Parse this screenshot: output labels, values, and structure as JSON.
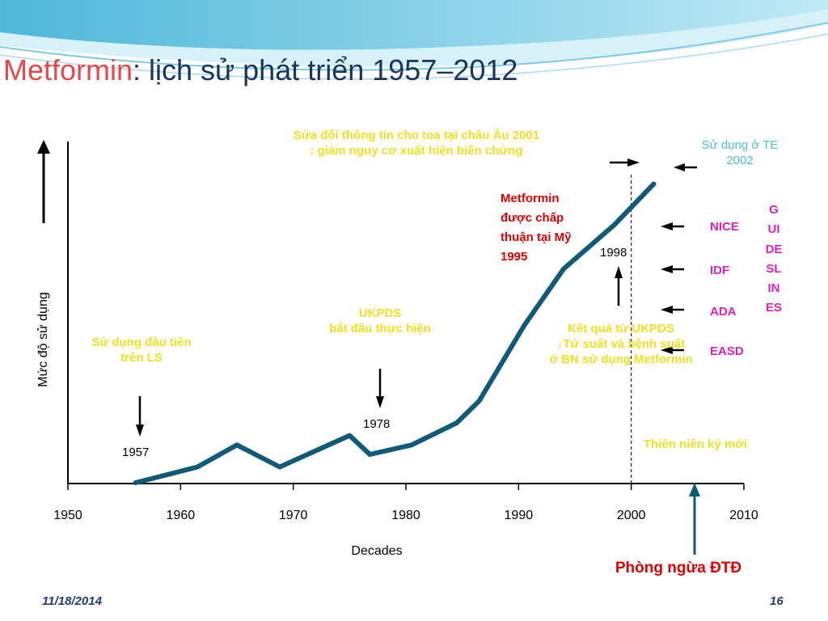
{
  "slide": {
    "title_accent": "Metformin",
    "title_rest": ": lịch sử phát triển 1957–2012",
    "footer_date": "11/18/2014",
    "page_number": "16",
    "colors": {
      "title": "#17365d",
      "accent": "#e8474c",
      "line": "#0f5a78",
      "wave": "#4fb7d9"
    }
  },
  "chart_data": {
    "type": "line",
    "xlabel": "Decades",
    "ylabel": "Mức độ sử dụng",
    "xlim": [
      1950,
      2010
    ],
    "x_ticks": [
      "1950",
      "1960",
      "1970",
      "1980",
      "1990",
      "2000",
      "2010"
    ],
    "y_ticks_visible": false,
    "series": [
      {
        "x": [
          1956,
          1961.5,
          1965,
          1968.8,
          1975,
          1976.8,
          1980.5,
          1984.5,
          1986.5,
          1990.5,
          1994,
          1998.5,
          2002
        ],
        "y": [
          0,
          5,
          12,
          5,
          15,
          9,
          12,
          19,
          26,
          50,
          68,
          82,
          95
        ]
      }
    ],
    "ylim": [
      0,
      100
    ],
    "reference_line_x": 2000,
    "annotations": {
      "label_1957": "1957",
      "label_1978": "1978",
      "label_1998": "1998",
      "first_use": "Sử dụng đầu tiên\ntrên LS",
      "ukpds_start": "UKPDS\nbắt đầu thực hiện",
      "europe_2001": "Sửa đổi thông tin cho toa tại châu Âu 2001\n: giảm nguy cơ xuất hiện biến chứng",
      "usa_1995": "Metformin\nđược chấp\nthuận tại Mỹ\n1995",
      "ukpds_results": "Kết quả từ UKPDS\n↓Tử suất và bệnh suất\nở BN sử dụng Metformin",
      "new_millennium": "Thiên niên kỷ mới",
      "children_2002": "Sử dụng ở TE\n2002",
      "prevention": "Phòng ngừa ĐTĐ",
      "guidelines": [
        "NICE",
        "IDF",
        "ADA",
        "EASD"
      ],
      "guidelines_vertical": "GUIDESLINES"
    }
  }
}
